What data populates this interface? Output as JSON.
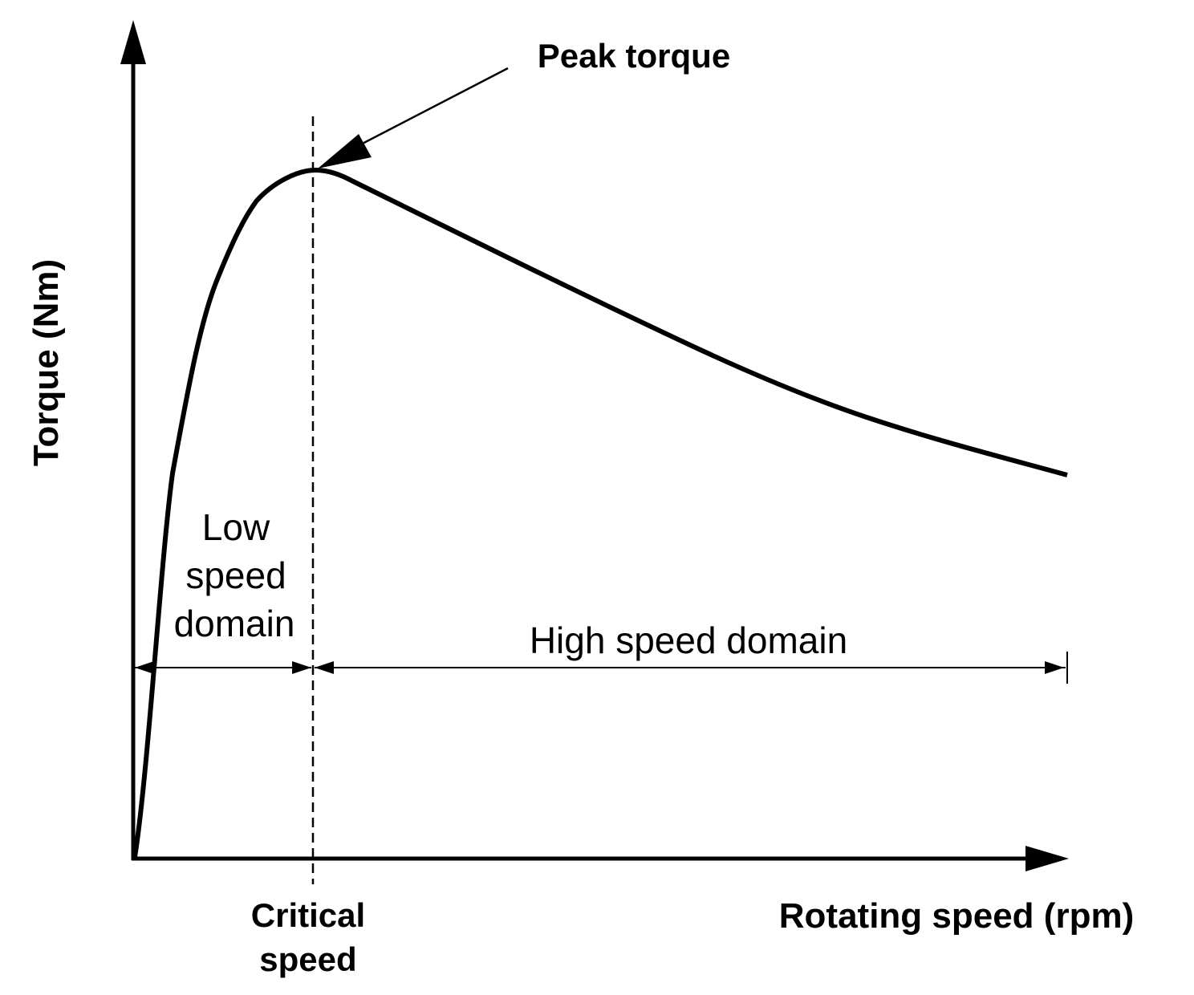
{
  "labels": {
    "y_axis": "Torque (Nm)",
    "x_axis": "Rotating speed (rpm)",
    "peak": "Peak torque",
    "critical_line1": "Critical",
    "critical_line2": "speed",
    "low_line1": "Low",
    "low_line2": "speed",
    "low_line3": "domain",
    "high": "High speed domain"
  },
  "colors": {
    "ink": "#000000",
    "background": "#ffffff"
  }
}
